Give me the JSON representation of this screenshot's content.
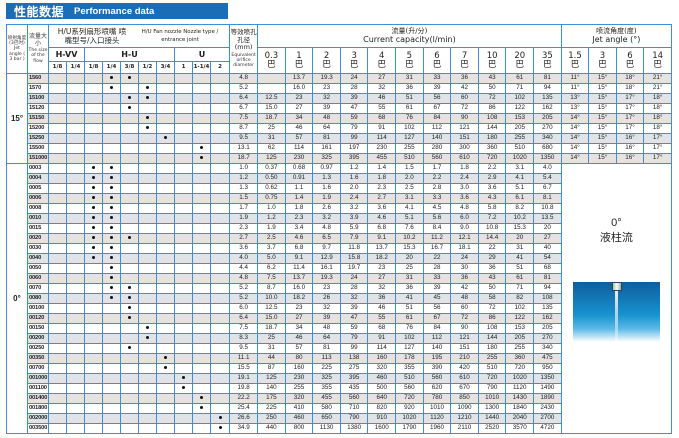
{
  "title": {
    "cn": "性能数据",
    "en": "Performance data"
  },
  "header": {
    "jet_angle_cn": "喷射角度 (3巴时)",
    "jet_angle_en": "Jet angle ( 3 bar )",
    "size_cn": "流量大小",
    "size_en": "The size of the flow",
    "nozzle_cn": "H/U系列扇形喷嘴 喷嘴型号/入口接头",
    "nozzle_en": "H/U  Fan nozzle Nozzle type / entrance joint",
    "diameter_cn": "等效喷孔孔径 (mm)",
    "diameter_en": "Equivalent orifice diameter",
    "capacity_cn": "流量(升/分)",
    "capacity_en": "Current capacity(l/min)",
    "angle_cn": "喷流角度(度)",
    "angle_en": "Jet angle (°)",
    "groups": [
      "H-VV",
      "H-U",
      "U"
    ],
    "connections": [
      "1/8",
      "1/4",
      "1/8",
      "1/4",
      "3/8",
      "1/2",
      "3/4",
      "1",
      "1-1/4",
      "2"
    ],
    "pressure_unit": "巴",
    "capacity_pressures": [
      "0.3",
      "1",
      "2",
      "3",
      "4",
      "5",
      "6",
      "7",
      "10",
      "20",
      "35"
    ],
    "angle_pressures": [
      "1.5",
      "3",
      "6",
      "14"
    ]
  },
  "sections": [
    {
      "angle": "15°",
      "rows": [
        {
          "size": "1560",
          "dots": [
            3,
            4
          ],
          "diameter": "4.8",
          "flow": [
            "",
            "13.7",
            "19.3",
            "24",
            "27",
            "31",
            "33",
            "36",
            "43",
            "61",
            "81"
          ],
          "angles": [
            "11°",
            "15°",
            "18°",
            "21°"
          ]
        },
        {
          "size": "1570",
          "dots": [
            3,
            5
          ],
          "diameter": "5.2",
          "flow": [
            "",
            "16.0",
            "23",
            "28",
            "32",
            "36",
            "39",
            "42",
            "50",
            "71",
            "94"
          ],
          "angles": [
            "11°",
            "15°",
            "18°",
            "21°"
          ]
        },
        {
          "size": "15100",
          "dots": [
            4,
            5
          ],
          "diameter": "6.4",
          "flow": [
            "12.5",
            "23",
            "32",
            "39",
            "46",
            "51",
            "56",
            "60",
            "72",
            "102",
            "135"
          ],
          "angles": [
            "13°",
            "15°",
            "17°",
            "18°"
          ]
        },
        {
          "size": "15120",
          "dots": [
            4
          ],
          "diameter": "6.7",
          "flow": [
            "15.0",
            "27",
            "39",
            "47",
            "55",
            "61",
            "67",
            "72",
            "86",
            "122",
            "162"
          ],
          "angles": [
            "13°",
            "15°",
            "17°",
            "18°"
          ]
        },
        {
          "size": "15150",
          "dots": [
            5
          ],
          "diameter": "7.5",
          "flow": [
            "18.7",
            "34",
            "48",
            "59",
            "68",
            "76",
            "84",
            "90",
            "108",
            "153",
            "205"
          ],
          "angles": [
            "14°",
            "15°",
            "17°",
            "18°"
          ]
        },
        {
          "size": "15200",
          "dots": [
            5
          ],
          "diameter": "8.7",
          "flow": [
            "25",
            "46",
            "64",
            "79",
            "91",
            "102",
            "112",
            "121",
            "144",
            "205",
            "270"
          ],
          "angles": [
            "14°",
            "15°",
            "17°",
            "18°"
          ]
        },
        {
          "size": "15250",
          "dots": [
            6
          ],
          "diameter": "9.5",
          "flow": [
            "31",
            "57",
            "81",
            "99",
            "114",
            "127",
            "140",
            "151",
            "180",
            "255",
            "340"
          ],
          "angles": [
            "14°",
            "15°",
            "16°",
            "17°"
          ]
        },
        {
          "size": "15500",
          "dots": [
            8
          ],
          "diameter": "13.1",
          "flow": [
            "62",
            "114",
            "161",
            "197",
            "230",
            "255",
            "280",
            "300",
            "360",
            "510",
            "680"
          ],
          "angles": [
            "14°",
            "15°",
            "16°",
            "17°"
          ]
        },
        {
          "size": "151000",
          "dots": [
            8
          ],
          "diameter": "18.7",
          "flow": [
            "125",
            "230",
            "325",
            "395",
            "455",
            "510",
            "560",
            "610",
            "720",
            "1020",
            "1350"
          ],
          "angles": [
            "14°",
            "15°",
            "16°",
            "17°"
          ]
        }
      ]
    },
    {
      "angle": "0°",
      "panel": {
        "angle": "0°",
        "label": "液柱流"
      },
      "rows": [
        {
          "size": "0003",
          "dots": [
            2,
            3
          ],
          "diameter": "1.0",
          "flow": [
            "0.37",
            "0.68",
            "0.97",
            "1.2",
            "1.4",
            "1.5",
            "1.7",
            "1.8",
            "2.2",
            "3.1",
            "4.0"
          ]
        },
        {
          "size": "0004",
          "dots": [
            2,
            3
          ],
          "diameter": "1.2",
          "flow": [
            "0.50",
            "0.91",
            "1.3",
            "1.6",
            "1.8",
            "2.0",
            "2.2",
            "2.4",
            "2.9",
            "4.1",
            "5.4"
          ]
        },
        {
          "size": "0005",
          "dots": [
            2,
            3
          ],
          "diameter": "1.3",
          "flow": [
            "0.62",
            "1.1",
            "1.6",
            "2.0",
            "2.3",
            "2.5",
            "2.8",
            "3.0",
            "3.6",
            "5.1",
            "6.7"
          ]
        },
        {
          "size": "0006",
          "dots": [
            2,
            3
          ],
          "diameter": "1.5",
          "flow": [
            "0.75",
            "1.4",
            "1.9",
            "2.4",
            "2.7",
            "3.1",
            "3.3",
            "3.6",
            "4.3",
            "6.1",
            "8.1"
          ]
        },
        {
          "size": "0008",
          "dots": [
            2,
            3
          ],
          "diameter": "1.7",
          "flow": [
            "1.0",
            "1.8",
            "2.6",
            "3.2",
            "3.6",
            "4.1",
            "4.5",
            "4.8",
            "5.8",
            "8.2",
            "10.8"
          ]
        },
        {
          "size": "0010",
          "dots": [
            2,
            3
          ],
          "diameter": "1.9",
          "flow": [
            "1.2",
            "2.3",
            "3.2",
            "3.9",
            "4.6",
            "5.1",
            "5.6",
            "6.0",
            "7.2",
            "10.2",
            "13.5"
          ]
        },
        {
          "size": "0015",
          "dots": [
            2,
            3
          ],
          "diameter": "2.3",
          "flow": [
            "1.9",
            "3.4",
            "4.8",
            "5.9",
            "6.8",
            "7.6",
            "8.4",
            "9.0",
            "10.8",
            "15.3",
            "20"
          ]
        },
        {
          "size": "0020",
          "dots": [
            2,
            3,
            4
          ],
          "diameter": "2.7",
          "flow": [
            "2.5",
            "4.6",
            "6.5",
            "7.9",
            "9.1",
            "10.2",
            "11.2",
            "12.1",
            "14.4",
            "20",
            "27"
          ]
        },
        {
          "size": "0030",
          "dots": [
            2,
            3
          ],
          "diameter": "3.6",
          "flow": [
            "3.7",
            "6.8",
            "9.7",
            "11.8",
            "13.7",
            "15.3",
            "16.7",
            "18.1",
            "22",
            "31",
            "40"
          ]
        },
        {
          "size": "0040",
          "dots": [
            2,
            3
          ],
          "diameter": "4.0",
          "flow": [
            "5.0",
            "9.1",
            "12.9",
            "15.8",
            "18.2",
            "20",
            "22",
            "24",
            "29",
            "41",
            "54"
          ]
        },
        {
          "size": "0050",
          "dots": [
            3
          ],
          "diameter": "4.4",
          "flow": [
            "6.2",
            "11.4",
            "16.1",
            "19.7",
            "23",
            "25",
            "28",
            "30",
            "36",
            "51",
            "68"
          ]
        },
        {
          "size": "0060",
          "dots": [
            3
          ],
          "diameter": "4.8",
          "flow": [
            "7.5",
            "13.7",
            "19.3",
            "24",
            "27",
            "31",
            "33",
            "36",
            "43",
            "61",
            "81"
          ]
        },
        {
          "size": "0070",
          "dots": [
            3,
            4
          ],
          "diameter": "5.2",
          "flow": [
            "8.7",
            "16.0",
            "23",
            "28",
            "32",
            "36",
            "39",
            "42",
            "50",
            "71",
            "94"
          ]
        },
        {
          "size": "0080",
          "dots": [
            3,
            4
          ],
          "diameter": "5.2",
          "flow": [
            "10.0",
            "18.2",
            "26",
            "32",
            "36",
            "41",
            "45",
            "48",
            "58",
            "82",
            "108"
          ]
        },
        {
          "size": "00100",
          "dots": [
            4
          ],
          "diameter": "6.0",
          "flow": [
            "12.5",
            "23",
            "32",
            "39",
            "46",
            "51",
            "56",
            "60",
            "72",
            "102",
            "135"
          ]
        },
        {
          "size": "00120",
          "dots": [
            4
          ],
          "diameter": "6.4",
          "flow": [
            "15.0",
            "27",
            "39",
            "47",
            "55",
            "61",
            "67",
            "72",
            "86",
            "122",
            "162"
          ]
        },
        {
          "size": "00150",
          "dots": [
            5
          ],
          "diameter": "7.5",
          "flow": [
            "18.7",
            "34",
            "48",
            "59",
            "68",
            "76",
            "84",
            "90",
            "108",
            "153",
            "205"
          ]
        },
        {
          "size": "00200",
          "dots": [
            5
          ],
          "diameter": "8.3",
          "flow": [
            "25",
            "46",
            "64",
            "79",
            "91",
            "102",
            "112",
            "121",
            "144",
            "205",
            "270"
          ]
        },
        {
          "size": "00250",
          "dots": [
            4
          ],
          "diameter": "9.5",
          "flow": [
            "31",
            "57",
            "81",
            "99",
            "114",
            "127",
            "140",
            "151",
            "180",
            "255",
            "340"
          ]
        },
        {
          "size": "00350",
          "dots": [
            6
          ],
          "diameter": "11.1",
          "flow": [
            "44",
            "80",
            "113",
            "138",
            "160",
            "178",
            "195",
            "210",
            "255",
            "360",
            "475"
          ]
        },
        {
          "size": "00700",
          "dots": [
            6
          ],
          "diameter": "15.5",
          "flow": [
            "87",
            "160",
            "225",
            "275",
            "320",
            "355",
            "390",
            "420",
            "510",
            "720",
            "950"
          ]
        },
        {
          "size": "001000",
          "dots": [
            7
          ],
          "diameter": "19.1",
          "flow": [
            "125",
            "230",
            "325",
            "395",
            "460",
            "510",
            "560",
            "610",
            "720",
            "1020",
            "1350"
          ]
        },
        {
          "size": "001100",
          "dots": [
            7
          ],
          "diameter": "19.8",
          "flow": [
            "140",
            "255",
            "355",
            "435",
            "500",
            "560",
            "620",
            "670",
            "790",
            "1120",
            "1490"
          ]
        },
        {
          "size": "001400",
          "dots": [
            8
          ],
          "diameter": "22.2",
          "flow": [
            "175",
            "320",
            "455",
            "560",
            "640",
            "720",
            "780",
            "850",
            "1010",
            "1430",
            "1890"
          ]
        },
        {
          "size": "001800",
          "dots": [
            8
          ],
          "diameter": "25.4",
          "flow": [
            "225",
            "410",
            "580",
            "710",
            "820",
            "920",
            "1010",
            "1090",
            "1300",
            "1840",
            "2430"
          ]
        },
        {
          "size": "002000",
          "dots": [
            9
          ],
          "diameter": "26.6",
          "flow": [
            "250",
            "460",
            "650",
            "790",
            "910",
            "1020",
            "1120",
            "1210",
            "1440",
            "2040",
            "2700"
          ]
        },
        {
          "size": "003500",
          "dots": [
            9
          ],
          "diameter": "34.9",
          "flow": [
            "440",
            "800",
            "1130",
            "1380",
            "1600",
            "1790",
            "1960",
            "2110",
            "2520",
            "3570",
            "4720"
          ]
        }
      ]
    }
  ],
  "colors": {
    "title_bar": "#1b6db7",
    "grid": "#3d8ed4",
    "row_shade": "#e3e3e6"
  }
}
